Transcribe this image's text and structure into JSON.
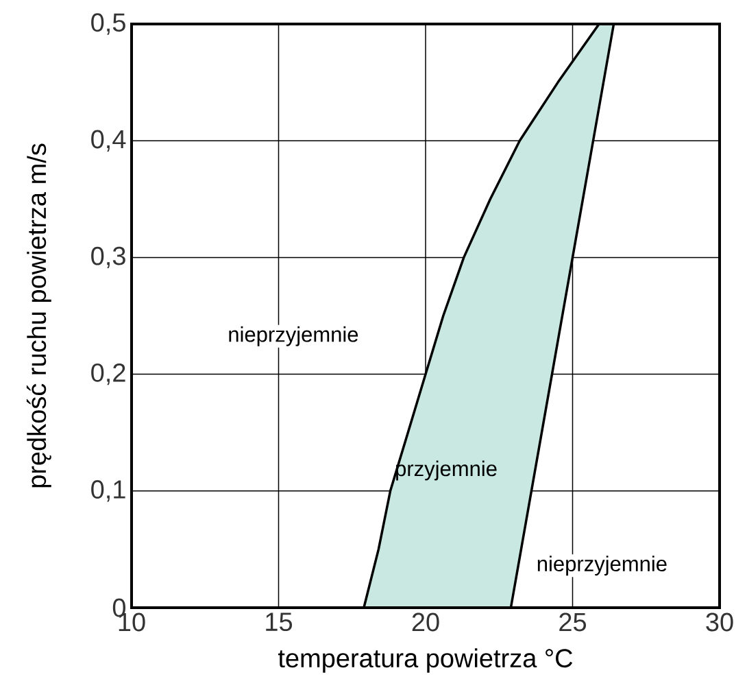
{
  "chart_data": {
    "type": "area",
    "xlabel": "temperatura powietrza °C",
    "ylabel": "prędkość ruchu powietrza m/s",
    "series": [
      {
        "color": "#c8e8e1",
        "x": [
          17.9,
          18.4,
          18.8,
          19.4,
          20.0,
          20.6,
          21.3,
          22.2,
          23.2,
          24.5,
          25.9,
          26.4,
          25.7,
          25.0,
          24.3,
          23.6,
          22.9
        ],
        "values": [
          0,
          0.05,
          0.1,
          0.15,
          0.2,
          0.25,
          0.3,
          0.35,
          0.4,
          0.45,
          0.5,
          0.5,
          0.4,
          0.3,
          0.2,
          0.1,
          0
        ]
      }
    ],
    "xlim": [
      10,
      30
    ],
    "xticks": [
      10,
      15,
      20,
      25,
      30
    ],
    "ylim": [
      0,
      0.5
    ],
    "yticks": [
      0,
      {
        "value": 0.1,
        "label": "0,1"
      },
      {
        "value": 0.2,
        "label": "0,2"
      },
      {
        "value": 0.3,
        "label": "0,3"
      },
      {
        "value": 0.4,
        "label": "0,4"
      },
      {
        "value": 0.5,
        "label": "0,5"
      }
    ],
    "grid": true,
    "annotations": [
      "nieprzyjemnie",
      "przyjemnie",
      "nieprzyjemnie"
    ]
  }
}
